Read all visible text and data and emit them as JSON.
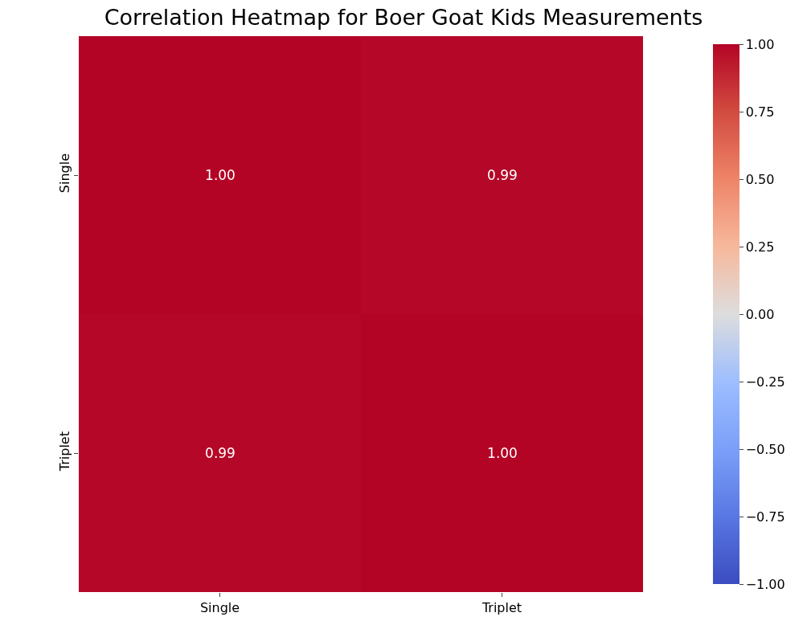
{
  "chart_data": {
    "type": "heatmap",
    "title": "Correlation Heatmap for Boer Goat Kids Measurements",
    "categories": [
      "Single",
      "Triplet"
    ],
    "y_categories": [
      "Single",
      "Triplet"
    ],
    "cells": [
      [
        1.0,
        0.99
      ],
      [
        0.99,
        1.0
      ]
    ],
    "cell_labels": [
      [
        "1.00",
        "0.99"
      ],
      [
        "0.99",
        "1.00"
      ]
    ],
    "clim": [
      -1,
      1
    ],
    "cticks": [
      {
        "value": -1,
        "label": "−1.00"
      },
      {
        "value": -0.75,
        "label": "−0.75"
      },
      {
        "value": -0.5,
        "label": "−0.50"
      },
      {
        "value": -0.25,
        "label": "−0.25"
      },
      {
        "value": 0,
        "label": "0.00"
      },
      {
        "value": 0.25,
        "label": "0.25"
      },
      {
        "value": 0.5,
        "label": "0.50"
      },
      {
        "value": 0.75,
        "label": "0.75"
      },
      {
        "value": 1,
        "label": "1.00"
      }
    ]
  }
}
